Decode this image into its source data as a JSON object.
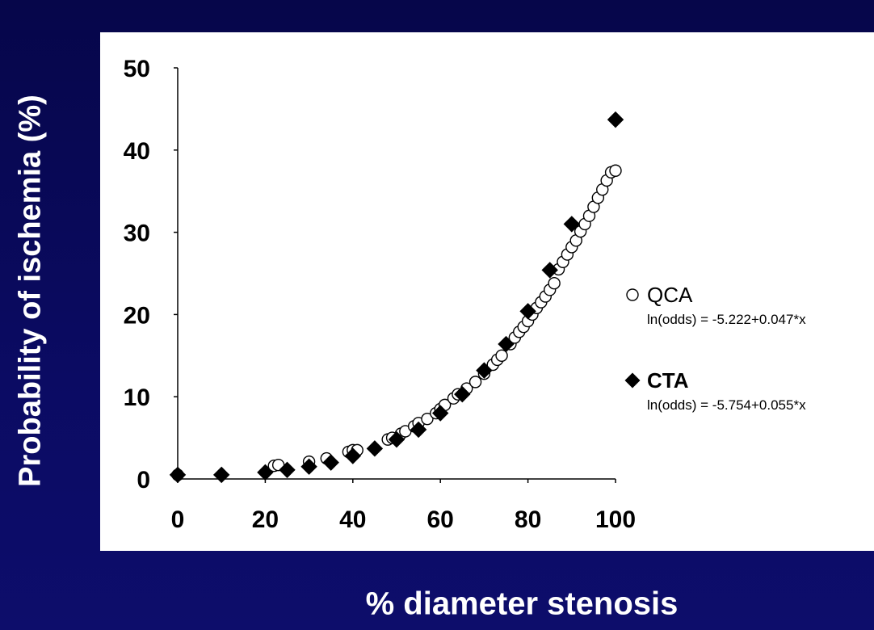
{
  "chart_data": {
    "type": "scatter",
    "xlabel": "% diameter stenosis",
    "ylabel": "Probability of ischemia (%)",
    "xlim": [
      0,
      100
    ],
    "ylim": [
      0,
      50
    ],
    "xticks": [
      "0",
      "20",
      "40",
      "60",
      "80",
      "100"
    ],
    "yticks": [
      "0",
      "10",
      "20",
      "30",
      "40",
      "50"
    ],
    "xtick_values": [
      0,
      20,
      40,
      60,
      80,
      100
    ],
    "ytick_values": [
      0,
      10,
      20,
      30,
      40,
      50
    ],
    "grid": false,
    "legend_position": "right",
    "series": [
      {
        "name": "QCA",
        "equation": "ln(odds) = -5.222+0.047*x",
        "marker": "open-circle",
        "color": "#000000",
        "x": [
          0,
          22,
          23,
          30,
          34,
          39,
          40,
          41,
          48,
          49,
          51,
          52,
          54,
          55,
          57,
          59,
          60,
          61,
          63,
          64,
          66,
          68,
          70,
          72,
          73,
          74,
          76,
          77,
          78,
          79,
          80,
          81,
          82,
          83,
          84,
          85,
          86,
          87,
          88,
          89,
          90,
          91,
          92,
          93,
          94,
          95,
          96,
          97,
          98,
          99,
          100
        ],
        "y": [
          0.5,
          1.6,
          1.7,
          2.1,
          2.5,
          3.3,
          3.5,
          3.5,
          4.8,
          5.0,
          5.5,
          5.8,
          6.4,
          6.8,
          7.3,
          8.0,
          8.5,
          9.0,
          9.8,
          10.3,
          11.0,
          11.8,
          12.8,
          13.9,
          14.5,
          15.0,
          16.4,
          17.2,
          17.9,
          18.5,
          19.2,
          20.0,
          20.8,
          21.5,
          22.2,
          23.0,
          23.8,
          25.5,
          26.4,
          27.3,
          28.2,
          29.0,
          30.1,
          31.0,
          32.0,
          33.1,
          34.2,
          35.2,
          36.3,
          37.3,
          37.5
        ]
      },
      {
        "name": "CTA",
        "equation": "ln(odds) = -5.754+0.055*x",
        "marker": "filled-diamond",
        "color": "#000000",
        "x": [
          0,
          10,
          20,
          25,
          30,
          35,
          40,
          45,
          50,
          55,
          60,
          65,
          70,
          75,
          80,
          85,
          90,
          100
        ],
        "y": [
          0.5,
          0.5,
          0.8,
          1.1,
          1.5,
          2.0,
          2.8,
          3.7,
          4.8,
          6.0,
          8.0,
          10.3,
          13.2,
          16.4,
          20.4,
          25.4,
          31.0,
          43.7
        ]
      }
    ]
  }
}
